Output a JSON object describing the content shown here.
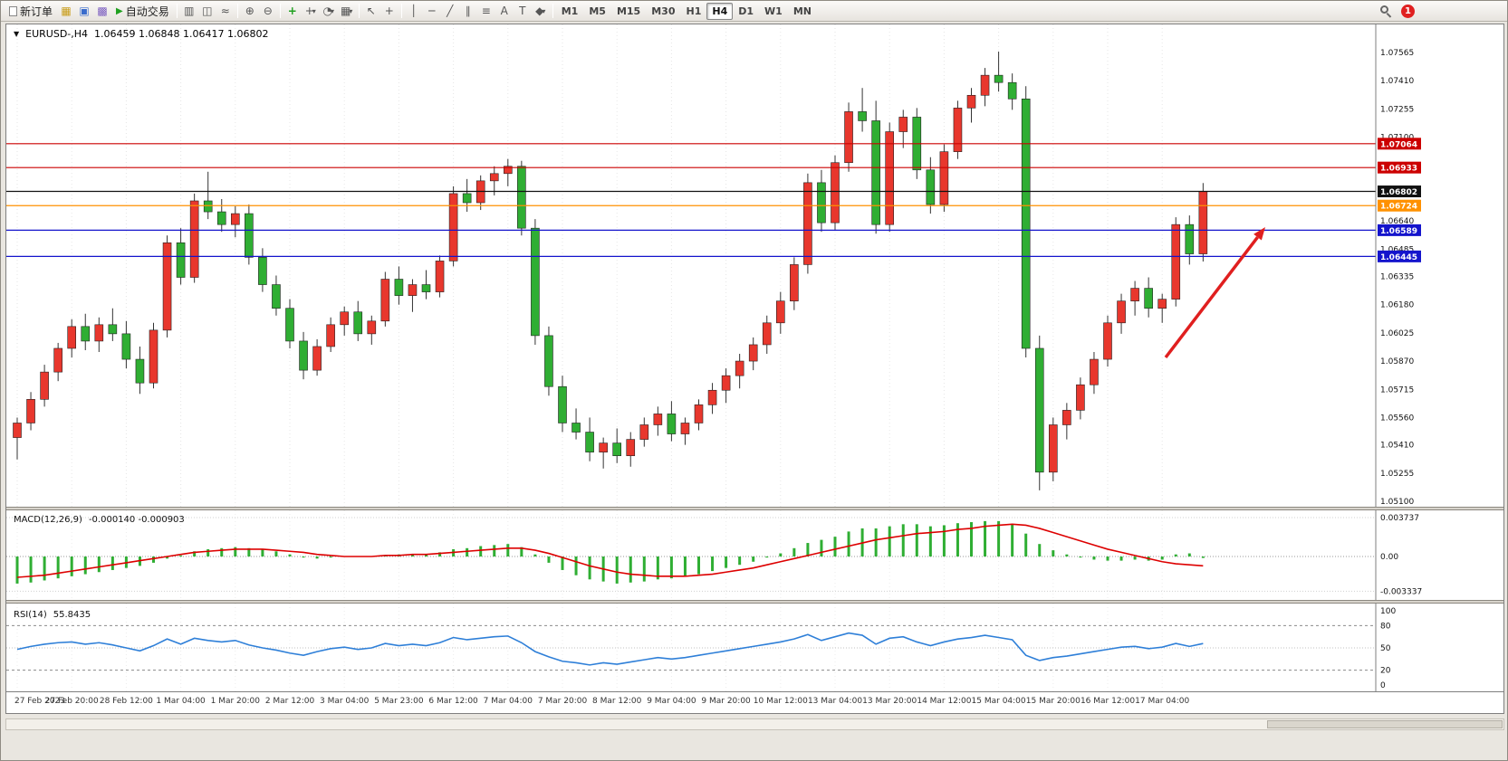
{
  "toolbar": {
    "new_order_label": "新订单",
    "auto_trading_label": "自动交易",
    "timeframes": [
      "M1",
      "M5",
      "M15",
      "M30",
      "H1",
      "H4",
      "D1",
      "W1",
      "MN"
    ],
    "active_timeframe": "H4",
    "badge_count": "1",
    "icons": {
      "market_watch": "▦",
      "data_window": "▣",
      "navigator": "▩",
      "auto_play": "▶",
      "bar_chart": "▥",
      "candlestick": "◫",
      "line_chart": "≈",
      "zoom_in": "⊕",
      "zoom_out": "⊖",
      "indicators": "+",
      "caret": "▾",
      "periods": "◔",
      "template": "▦",
      "cursor": "↖",
      "crosshair": "+",
      "vline": "│",
      "hline": "─",
      "trendline": "╱",
      "channel": "∥",
      "fibonacci": "≡",
      "text_tool": "A",
      "label_tool": "T",
      "shapes": "◆"
    }
  },
  "chart": {
    "menu_icon": "▼",
    "title": "EURUSD-,H4",
    "ohlc_text": "1.06459 1.06848 1.06417 1.06802"
  },
  "chart_data": {
    "type": "candlestick",
    "symbol": "EURUSD-",
    "timeframe": "H4",
    "ohlc": {
      "open": "1.06459",
      "high": "1.06848",
      "low": "1.06417",
      "close": "1.06802"
    },
    "ylim": [
      1.051,
      1.07565
    ],
    "y_ticks": [
      "1.07565",
      "1.07410",
      "1.07255",
      "1.07100",
      "1.06640",
      "1.06485",
      "1.06335",
      "1.06180",
      "1.06025",
      "1.05870",
      "1.05715",
      "1.05560",
      "1.05410",
      "1.05255",
      "1.05100"
    ],
    "price_lines": [
      {
        "price": 1.07064,
        "label": "1.07064",
        "color": "#cc0000"
      },
      {
        "price": 1.06933,
        "label": "1.06933",
        "color": "#cc0000"
      },
      {
        "price": 1.06802,
        "label": "1.06802",
        "color": "#111111"
      },
      {
        "price": 1.06724,
        "label": "1.06724",
        "color": "#ff9100"
      },
      {
        "price": 1.06589,
        "label": "1.06589",
        "color": "#1414cc"
      },
      {
        "price": 1.06445,
        "label": "1.06445",
        "color": "#1414cc"
      }
    ],
    "time_labels": [
      [
        0,
        "27 Feb 2023"
      ],
      [
        4,
        "27 Feb 20:00"
      ],
      [
        8,
        "28 Feb 12:00"
      ],
      [
        12,
        "1 Mar 04:00"
      ],
      [
        16,
        "1 Mar 20:00"
      ],
      [
        20,
        "2 Mar 12:00"
      ],
      [
        24,
        "3 Mar 04:00"
      ],
      [
        28,
        "5 Mar 23:00"
      ],
      [
        32,
        "6 Mar 12:00"
      ],
      [
        36,
        "7 Mar 04:00"
      ],
      [
        40,
        "7 Mar 20:00"
      ],
      [
        44,
        "8 Mar 12:00"
      ],
      [
        48,
        "9 Mar 04:00"
      ],
      [
        52,
        "9 Mar 20:00"
      ],
      [
        56,
        "10 Mar 12:00"
      ],
      [
        60,
        "13 Mar 04:00"
      ],
      [
        64,
        "13 Mar 20:00"
      ],
      [
        68,
        "14 Mar 12:00"
      ],
      [
        72,
        "15 Mar 04:00"
      ],
      [
        76,
        "15 Mar 20:00"
      ],
      [
        80,
        "16 Mar 12:00"
      ],
      [
        84,
        "17 Mar 04:00"
      ]
    ],
    "candles": [
      [
        1.0545,
        1.0556,
        1.0533,
        1.0553
      ],
      [
        1.0553,
        1.057,
        1.0549,
        1.0566
      ],
      [
        1.0566,
        1.0585,
        1.0562,
        1.0581
      ],
      [
        1.0581,
        1.0597,
        1.0576,
        1.0594
      ],
      [
        1.0594,
        1.061,
        1.0589,
        1.0606
      ],
      [
        1.0606,
        1.0613,
        1.0593,
        1.0598
      ],
      [
        1.0598,
        1.0611,
        1.0592,
        1.0607
      ],
      [
        1.0607,
        1.0616,
        1.0598,
        1.0602
      ],
      [
        1.0602,
        1.0609,
        1.0583,
        1.0588
      ],
      [
        1.0588,
        1.0595,
        1.0569,
        1.0575
      ],
      [
        1.0575,
        1.0608,
        1.0572,
        1.0604
      ],
      [
        1.0604,
        1.0656,
        1.06,
        1.0652
      ],
      [
        1.0652,
        1.066,
        1.0629,
        1.0633
      ],
      [
        1.0633,
        1.0679,
        1.063,
        1.0675
      ],
      [
        1.0675,
        1.0691,
        1.0665,
        1.0669
      ],
      [
        1.0669,
        1.0676,
        1.0658,
        1.0662
      ],
      [
        1.0662,
        1.0672,
        1.0655,
        1.0668
      ],
      [
        1.0668,
        1.0673,
        1.064,
        1.0644
      ],
      [
        1.0644,
        1.0649,
        1.0625,
        1.0629
      ],
      [
        1.0629,
        1.0634,
        1.0612,
        1.0616
      ],
      [
        1.0616,
        1.0621,
        1.0594,
        1.0598
      ],
      [
        1.0598,
        1.0603,
        1.0577,
        1.0582
      ],
      [
        1.0582,
        1.0599,
        1.0579,
        1.0595
      ],
      [
        1.0595,
        1.0611,
        1.0592,
        1.0607
      ],
      [
        1.0607,
        1.0617,
        1.0601,
        1.0614
      ],
      [
        1.0614,
        1.062,
        1.0598,
        1.0602
      ],
      [
        1.0602,
        1.0612,
        1.0596,
        1.0609
      ],
      [
        1.0609,
        1.0636,
        1.0606,
        1.0632
      ],
      [
        1.0632,
        1.0639,
        1.0618,
        1.0623
      ],
      [
        1.0623,
        1.0632,
        1.0614,
        1.0629
      ],
      [
        1.0629,
        1.0637,
        1.0621,
        1.0625
      ],
      [
        1.0625,
        1.0645,
        1.0622,
        1.0642
      ],
      [
        1.0642,
        1.0683,
        1.0639,
        1.0679
      ],
      [
        1.0679,
        1.0687,
        1.0669,
        1.0674
      ],
      [
        1.0674,
        1.0689,
        1.067,
        1.0686
      ],
      [
        1.0686,
        1.0694,
        1.0678,
        1.069
      ],
      [
        1.069,
        1.0698,
        1.0683,
        1.0694
      ],
      [
        1.0694,
        1.0697,
        1.0656,
        1.066
      ],
      [
        1.066,
        1.0665,
        1.0596,
        1.0601
      ],
      [
        1.0601,
        1.0606,
        1.0568,
        1.0573
      ],
      [
        1.0573,
        1.0579,
        1.0548,
        1.0553
      ],
      [
        1.0553,
        1.0561,
        1.0544,
        1.0548
      ],
      [
        1.0548,
        1.0556,
        1.0532,
        1.0537
      ],
      [
        1.0537,
        1.0545,
        1.0528,
        1.0542
      ],
      [
        1.0542,
        1.055,
        1.0531,
        1.0535
      ],
      [
        1.0535,
        1.0548,
        1.0529,
        1.0544
      ],
      [
        1.0544,
        1.0556,
        1.054,
        1.0552
      ],
      [
        1.0552,
        1.0562,
        1.0546,
        1.0558
      ],
      [
        1.0558,
        1.0565,
        1.0543,
        1.0547
      ],
      [
        1.0547,
        1.0556,
        1.0541,
        1.0553
      ],
      [
        1.0553,
        1.0566,
        1.0549,
        1.0563
      ],
      [
        1.0563,
        1.0575,
        1.0558,
        1.0571
      ],
      [
        1.0571,
        1.0583,
        1.0564,
        1.0579
      ],
      [
        1.0579,
        1.0591,
        1.0572,
        1.0587
      ],
      [
        1.0587,
        1.06,
        1.0582,
        1.0596
      ],
      [
        1.0596,
        1.0612,
        1.0591,
        1.0608
      ],
      [
        1.0608,
        1.0625,
        1.0602,
        1.062
      ],
      [
        1.062,
        1.0644,
        1.0615,
        1.064
      ],
      [
        1.064,
        1.069,
        1.0635,
        1.0685
      ],
      [
        1.0685,
        1.0692,
        1.0658,
        1.0663
      ],
      [
        1.0663,
        1.07,
        1.0659,
        1.0696
      ],
      [
        1.0696,
        1.0729,
        1.0691,
        1.0724
      ],
      [
        1.0724,
        1.0737,
        1.0713,
        1.0719
      ],
      [
        1.0719,
        1.073,
        1.0657,
        1.0662
      ],
      [
        1.0662,
        1.0718,
        1.0658,
        1.0713
      ],
      [
        1.0713,
        1.0725,
        1.0704,
        1.0721
      ],
      [
        1.0721,
        1.0726,
        1.0687,
        1.0692
      ],
      [
        1.0692,
        1.0699,
        1.0668,
        1.0673
      ],
      [
        1.0673,
        1.0706,
        1.0669,
        1.0702
      ],
      [
        1.0702,
        1.073,
        1.0698,
        1.0726
      ],
      [
        1.0726,
        1.0737,
        1.0718,
        1.0733
      ],
      [
        1.0733,
        1.0748,
        1.0727,
        1.0744
      ],
      [
        1.0744,
        1.0757,
        1.0735,
        1.074
      ],
      [
        1.074,
        1.0745,
        1.0725,
        1.0731
      ],
      [
        1.0731,
        1.0738,
        1.0589,
        1.0594
      ],
      [
        1.0594,
        1.0601,
        1.0516,
        1.0526
      ],
      [
        1.0526,
        1.0556,
        1.0521,
        1.0552
      ],
      [
        1.0552,
        1.0564,
        1.0544,
        1.056
      ],
      [
        1.056,
        1.0578,
        1.0555,
        1.0574
      ],
      [
        1.0574,
        1.0592,
        1.0569,
        1.0588
      ],
      [
        1.0588,
        1.0612,
        1.0584,
        1.0608
      ],
      [
        1.0608,
        1.0624,
        1.0602,
        1.062
      ],
      [
        1.062,
        1.0631,
        1.0612,
        1.0627
      ],
      [
        1.0627,
        1.0633,
        1.0611,
        1.0616
      ],
      [
        1.0616,
        1.0624,
        1.0608,
        1.0621
      ],
      [
        1.0621,
        1.0666,
        1.0617,
        1.0662
      ],
      [
        1.0662,
        1.0667,
        1.064,
        1.06459
      ],
      [
        1.06459,
        1.06848,
        1.06417,
        1.06802
      ]
    ],
    "macd": {
      "name": "MACD(12,26,9)",
      "values_text": "-0.000140 -0.000903",
      "axis": [
        "0.003737",
        "0.00",
        "-0.003337"
      ],
      "hist": [
        -0.0026,
        -0.0025,
        -0.0023,
        -0.0021,
        -0.0019,
        -0.0017,
        -0.0015,
        -0.0013,
        -0.0011,
        -0.0009,
        -0.0006,
        -0.0002,
        0.0001,
        0.0005,
        0.0007,
        0.0008,
        0.0009,
        0.0008,
        0.0007,
        0.0005,
        0.0002,
        -0.0001,
        -0.0002,
        -0.0001,
        0.0,
        0.0,
        0.0,
        0.0001,
        0.0002,
        0.0002,
        0.0002,
        0.0004,
        0.0007,
        0.0008,
        0.001,
        0.0011,
        0.0012,
        0.0009,
        0.0002,
        -0.0006,
        -0.0013,
        -0.0018,
        -0.0022,
        -0.0024,
        -0.0026,
        -0.0025,
        -0.0024,
        -0.0022,
        -0.0021,
        -0.0019,
        -0.0017,
        -0.0014,
        -0.0011,
        -0.0008,
        -0.0005,
        -0.0001,
        0.0003,
        0.0008,
        0.0013,
        0.0016,
        0.0019,
        0.0024,
        0.0027,
        0.0027,
        0.0029,
        0.0031,
        0.0031,
        0.0029,
        0.003,
        0.0032,
        0.0033,
        0.0034,
        0.0034,
        0.0031,
        0.0022,
        0.0012,
        0.0006,
        0.0002,
        -0.0001,
        -0.0003,
        -0.0004,
        -0.0004,
        -0.0003,
        -0.0004,
        -0.0003,
        0.0002,
        0.0003,
        -0.00014
      ],
      "signal": [
        -0.002,
        -0.0019,
        -0.0018,
        -0.0016,
        -0.0014,
        -0.0012,
        -0.001,
        -0.0008,
        -0.0006,
        -0.0004,
        -0.0002,
        0.0,
        0.0002,
        0.0004,
        0.0005,
        0.0006,
        0.0007,
        0.0007,
        0.0007,
        0.0006,
        0.0005,
        0.0004,
        0.0002,
        0.0001,
        0.0,
        0.0,
        0.0,
        0.0001,
        0.0001,
        0.0002,
        0.0002,
        0.0003,
        0.0004,
        0.0005,
        0.0006,
        0.0007,
        0.0008,
        0.0008,
        0.0006,
        0.0003,
        -0.0001,
        -0.0005,
        -0.0009,
        -0.0012,
        -0.0015,
        -0.0017,
        -0.0018,
        -0.0019,
        -0.0019,
        -0.0019,
        -0.0018,
        -0.0017,
        -0.0015,
        -0.0013,
        -0.0011,
        -0.0008,
        -0.0005,
        -0.0002,
        0.0001,
        0.0004,
        0.0007,
        0.001,
        0.0013,
        0.0016,
        0.0018,
        0.002,
        0.0022,
        0.0023,
        0.0024,
        0.0026,
        0.0027,
        0.0029,
        0.003,
        0.0031,
        0.003,
        0.0027,
        0.0023,
        0.0019,
        0.0015,
        0.0011,
        0.0007,
        0.0004,
        0.0001,
        -0.0002,
        -0.0005,
        -0.0007,
        -0.0008,
        -0.0009
      ]
    },
    "rsi": {
      "name": "RSI(14)",
      "value_text": "55.8435",
      "levels": [
        100,
        80,
        50,
        20,
        0
      ],
      "values": [
        48,
        52,
        55,
        57,
        58,
        55,
        57,
        54,
        50,
        46,
        53,
        62,
        55,
        63,
        60,
        58,
        60,
        54,
        50,
        47,
        43,
        40,
        45,
        49,
        51,
        48,
        50,
        56,
        53,
        55,
        53,
        57,
        64,
        61,
        63,
        65,
        66,
        57,
        45,
        38,
        32,
        30,
        27,
        30,
        28,
        31,
        34,
        37,
        35,
        37,
        40,
        43,
        46,
        49,
        52,
        55,
        58,
        62,
        68,
        60,
        65,
        70,
        67,
        55,
        63,
        65,
        58,
        53,
        58,
        62,
        64,
        67,
        64,
        61,
        40,
        33,
        37,
        39,
        42,
        45,
        48,
        51,
        52,
        49,
        51,
        56,
        52,
        55.84
      ]
    },
    "annotations": {
      "arrow": {
        "from": [
          1280,
          368
        ],
        "to": [
          1390,
          224
        ]
      }
    },
    "colors": {
      "bull": "#e8372d",
      "bear": "#2fae33",
      "wick": "#333333",
      "macd_hist": "#2fae33",
      "macd_signal": "#dd0000",
      "rsi_line": "#2e7fd8",
      "arrow": "#e01f1f"
    }
  }
}
